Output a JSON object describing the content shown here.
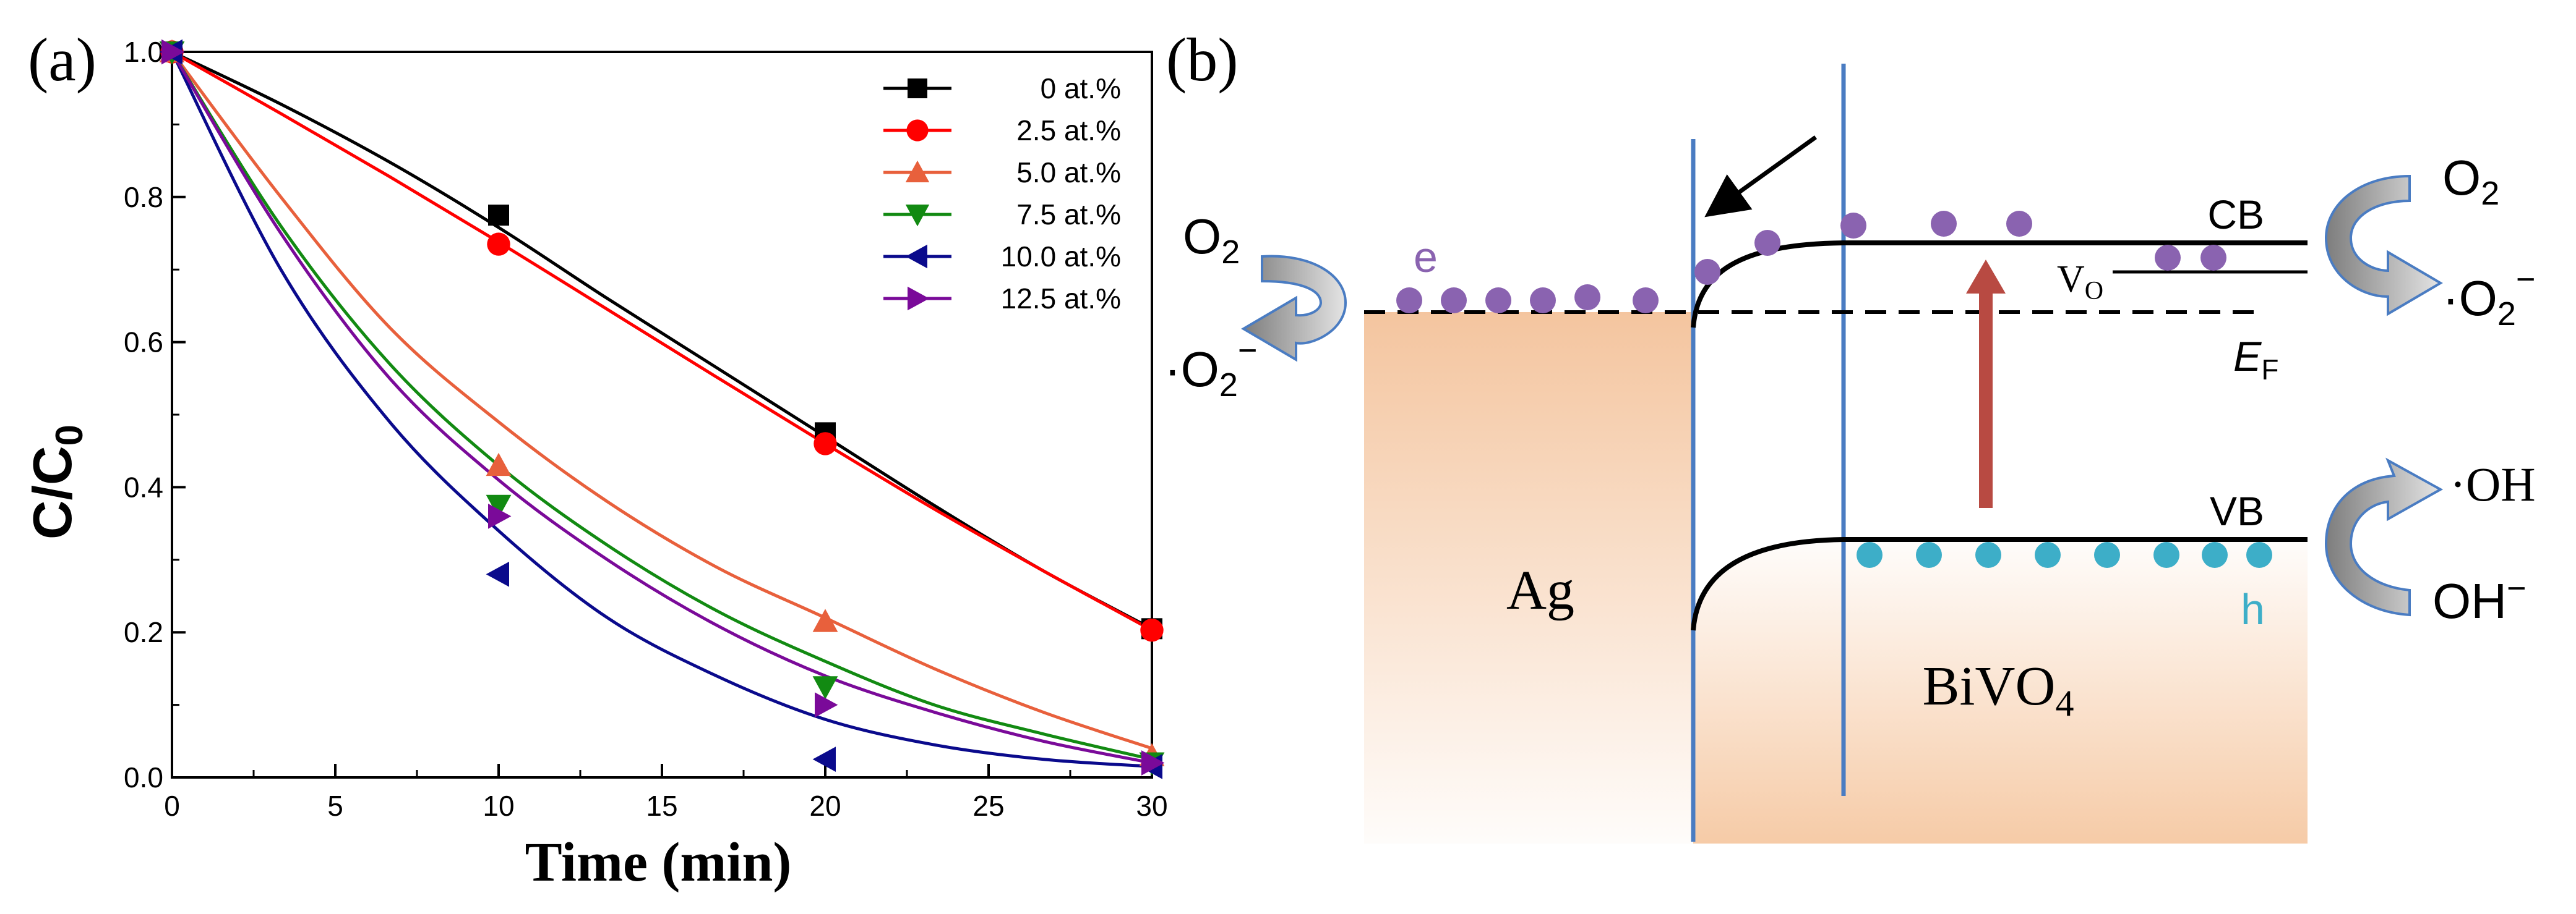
{
  "panels": {
    "a_label": "(a)",
    "b_label": "(b)"
  },
  "colors": {
    "s0": "#000000",
    "s1": "#ff0000",
    "s2": "#e8603c",
    "s3": "#128a12",
    "s4": "#0a0a8c",
    "s5": "#7a0a99",
    "electron": "#8a63b0",
    "hole": "#3daec8",
    "interface": "#4a7cc2",
    "excitation": "#b84a42",
    "metal_fill": "#f4c59f"
  },
  "chart_data": {
    "type": "line",
    "title": "",
    "xlabel": "Time (min)",
    "ylabel_main": "C/C",
    "ylabel_sub": "0",
    "xlim": [
      0,
      30
    ],
    "ylim": [
      0,
      1.0
    ],
    "xticks": [
      "0",
      "5",
      "10",
      "15",
      "20",
      "25",
      "30"
    ],
    "yticks": [
      "0.0",
      "0.2",
      "0.4",
      "0.6",
      "0.8",
      "1.0"
    ],
    "legend_position": "top-right",
    "series": [
      {
        "name": "0 at.%",
        "marker": "square",
        "x": [
          0,
          10,
          20,
          30
        ],
        "y": [
          1.0,
          0.775,
          0.475,
          0.205
        ],
        "fit": [
          1.0,
          0.928,
          0.848,
          0.758,
          0.66,
          0.565,
          0.47,
          0.375,
          0.285,
          0.205
        ]
      },
      {
        "name": "2.5 at.%",
        "marker": "circle",
        "x": [
          0,
          10,
          20,
          30
        ],
        "y": [
          1.0,
          0.735,
          0.46,
          0.203
        ],
        "fit": [
          1.0,
          0.915,
          0.828,
          0.738,
          0.645,
          0.552,
          0.46,
          0.37,
          0.285,
          0.203
        ]
      },
      {
        "name": "5.0 at.%",
        "marker": "triangle-up",
        "x": [
          0,
          10,
          20,
          30
        ],
        "y": [
          1.0,
          0.43,
          0.215,
          0.03
        ],
        "fit": [
          1.0,
          0.8,
          0.62,
          0.49,
          0.38,
          0.29,
          0.22,
          0.15,
          0.09,
          0.04
        ]
      },
      {
        "name": "7.5 at.%",
        "marker": "triangle-down",
        "x": [
          0,
          10,
          20,
          30
        ],
        "y": [
          1.0,
          0.375,
          0.125,
          0.02
        ],
        "fit": [
          1.0,
          0.76,
          0.57,
          0.43,
          0.32,
          0.23,
          0.16,
          0.1,
          0.06,
          0.025
        ]
      },
      {
        "name": "10.0 at.%",
        "marker": "triangle-left",
        "x": [
          0,
          10,
          20,
          30
        ],
        "y": [
          1.0,
          0.28,
          0.025,
          0.015
        ],
        "fit": [
          1.0,
          0.7,
          0.49,
          0.34,
          0.22,
          0.14,
          0.08,
          0.045,
          0.025,
          0.015
        ]
      },
      {
        "name": "12.5 at.%",
        "marker": "triangle-right",
        "x": [
          0,
          10,
          20,
          30
        ],
        "y": [
          1.0,
          0.36,
          0.1,
          0.02
        ],
        "fit": [
          1.0,
          0.75,
          0.55,
          0.41,
          0.3,
          0.21,
          0.14,
          0.09,
          0.05,
          0.02
        ]
      }
    ]
  },
  "diagram": {
    "metal": "Ag",
    "semiconductor": "BiVO",
    "semiconductor_sub": "4",
    "cb": "CB",
    "vb": "VB",
    "fermi": "E",
    "fermi_sub": "F",
    "vacancy": "V",
    "vacancy_sub": "O",
    "electron": "e",
    "hole": "h",
    "o2_left": "O",
    "o2_left_sub": "2",
    "superoxide_left": "·O",
    "superoxide_left_sub": "2",
    "superoxide_left_sup": "−",
    "o2_right": "O",
    "o2_right_sub": "2",
    "superoxide_right": "·O",
    "superoxide_right_sub": "2",
    "superoxide_right_sup": "−",
    "hydroxyl_radical": "·OH",
    "hydroxide": "OH",
    "hydroxide_sup": "−"
  }
}
